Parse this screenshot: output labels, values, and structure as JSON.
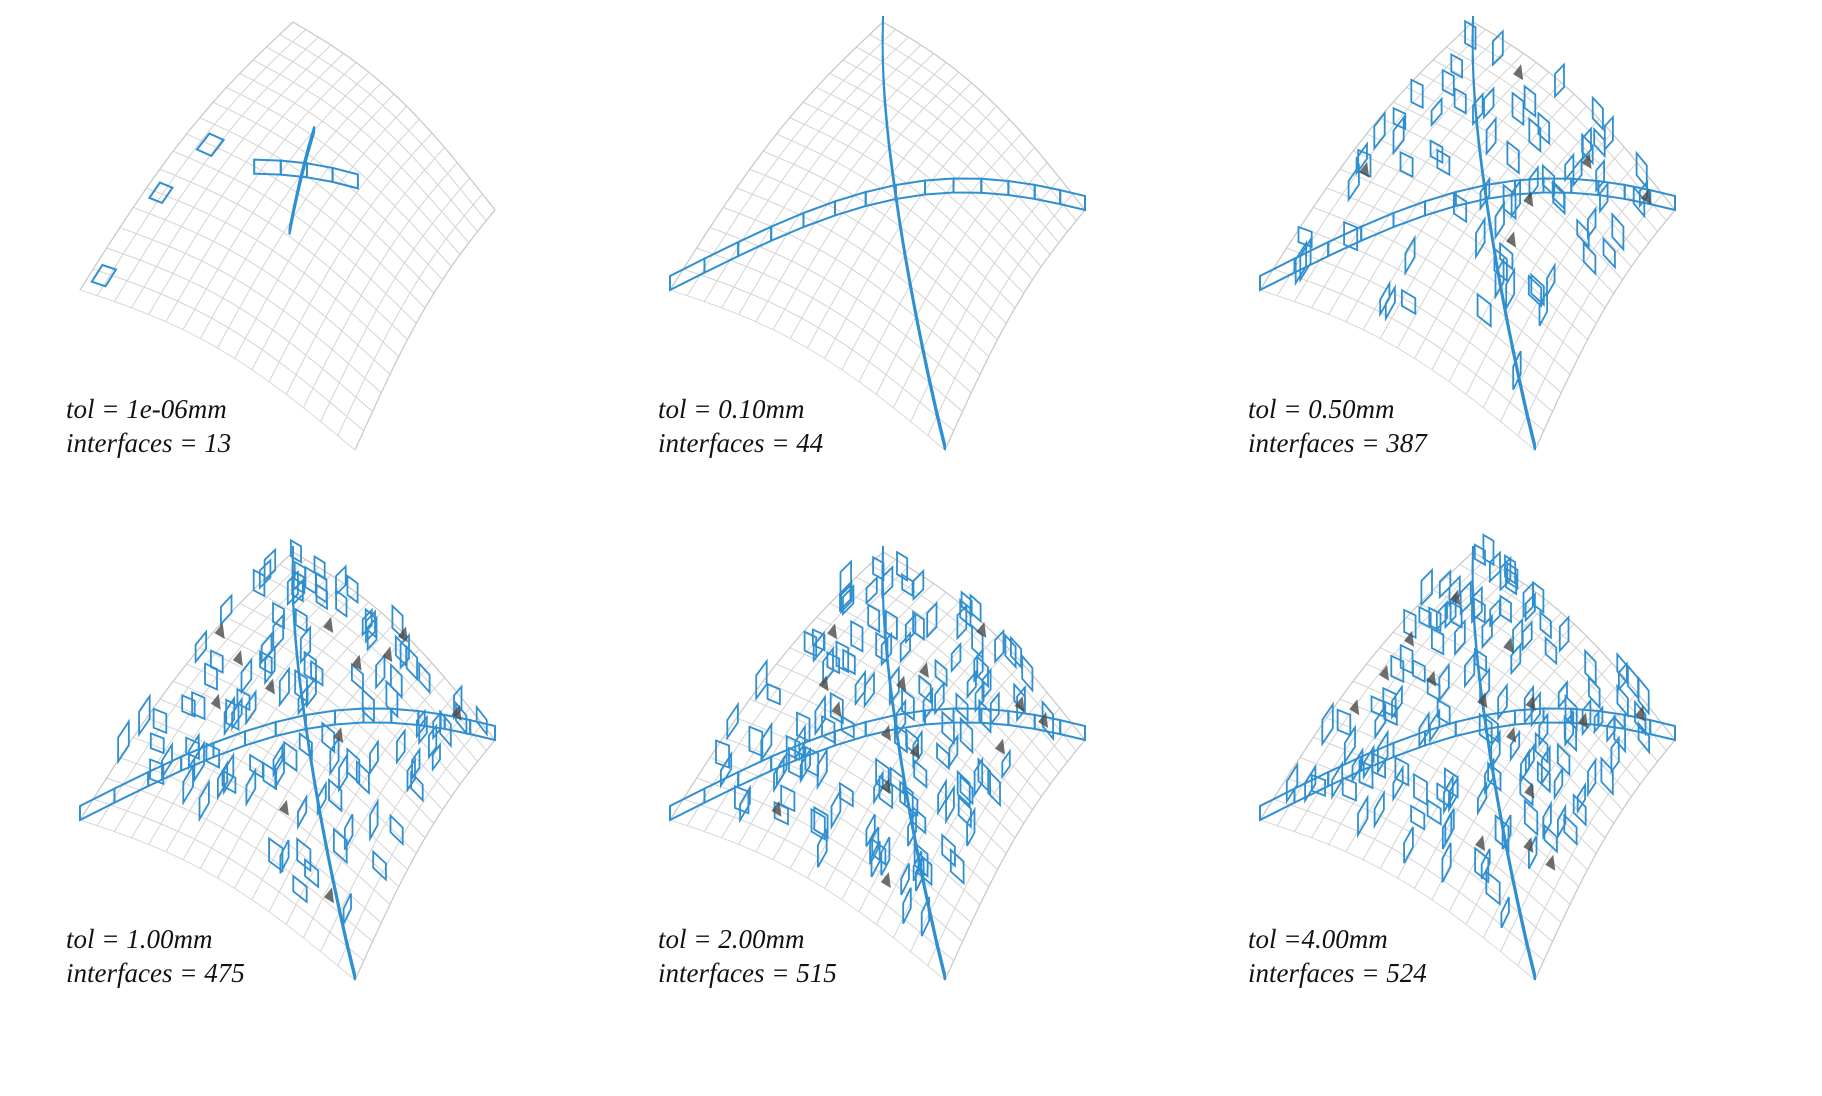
{
  "colors": {
    "background": "#ffffff",
    "interface_blue": "#2f8fd0",
    "wireframe_grey": "#d6d6d6",
    "shading_dark": "#4a4a4a",
    "text": "#111111"
  },
  "panels": [
    {
      "id": "p1",
      "tol_label": "tol = 1e-06mm",
      "interfaces_label": "interfaces = 13",
      "interfaces": 13,
      "stage": 0
    },
    {
      "id": "p2",
      "tol_label": "tol = 0.10mm",
      "interfaces_label": "interfaces = 44",
      "interfaces": 44,
      "stage": 1
    },
    {
      "id": "p3",
      "tol_label": "tol = 0.50mm",
      "interfaces_label": "interfaces = 387",
      "interfaces": 387,
      "stage": 2
    },
    {
      "id": "p4",
      "tol_label": "tol = 1.00mm",
      "interfaces_label": "interfaces = 475",
      "interfaces": 475,
      "stage": 3
    },
    {
      "id": "p5",
      "tol_label": "tol = 2.00mm",
      "interfaces_label": "interfaces = 515",
      "interfaces": 515,
      "stage": 4
    },
    {
      "id": "p6",
      "tol_label": "tol =4.00mm",
      "interfaces_label": "interfaces = 524",
      "interfaces": 524,
      "stage": 5
    }
  ]
}
